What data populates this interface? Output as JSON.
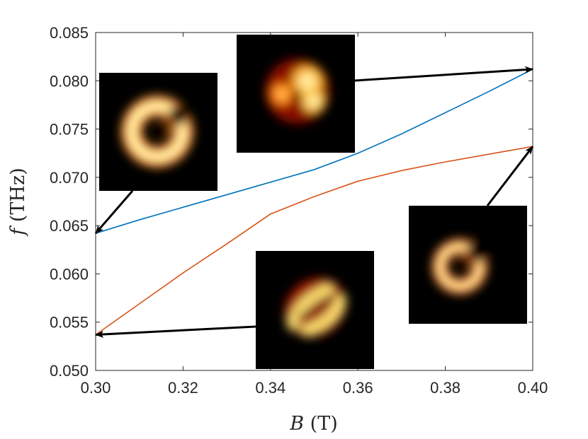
{
  "chart_data": {
    "type": "line",
    "xlabel_var": "B",
    "xlabel_unit": "(T)",
    "ylabel_var": "f",
    "ylabel_unit": "(THz)",
    "xlim": [
      0.3,
      0.4
    ],
    "ylim": [
      0.05,
      0.085
    ],
    "xticks": [
      "0.30",
      "0.32",
      "0.34",
      "0.36",
      "0.38",
      "0.40"
    ],
    "yticks": [
      "0.050",
      "0.055",
      "0.060",
      "0.065",
      "0.070",
      "0.075",
      "0.080",
      "0.085"
    ],
    "grid": false,
    "series": [
      {
        "color": "#0072BD",
        "x": [
          0.3,
          0.31,
          0.32,
          0.33,
          0.34,
          0.35,
          0.36,
          0.37,
          0.38,
          0.39,
          0.4
        ],
        "y": [
          0.0642,
          0.0656,
          0.0669,
          0.0682,
          0.0695,
          0.0708,
          0.0725,
          0.0745,
          0.0767,
          0.0789,
          0.0812
        ]
      },
      {
        "color": "#D95319",
        "x": [
          0.3,
          0.31,
          0.32,
          0.33,
          0.34,
          0.35,
          0.36,
          0.37,
          0.38,
          0.39,
          0.4
        ],
        "y": [
          0.0537,
          0.0569,
          0.0601,
          0.0631,
          0.0662,
          0.068,
          0.0696,
          0.0707,
          0.0716,
          0.0724,
          0.0732
        ]
      }
    ],
    "annotations": [
      {
        "name": "mode-c-shaped",
        "arrow_to": [
          0.3,
          0.0642
        ]
      },
      {
        "name": "mode-three-lobe",
        "arrow_to": [
          0.4,
          0.0812
        ]
      },
      {
        "name": "mode-double-arc",
        "arrow_to": [
          0.3,
          0.0537
        ]
      },
      {
        "name": "mode-small-c",
        "arrow_to": [
          0.4,
          0.0732
        ]
      }
    ]
  }
}
